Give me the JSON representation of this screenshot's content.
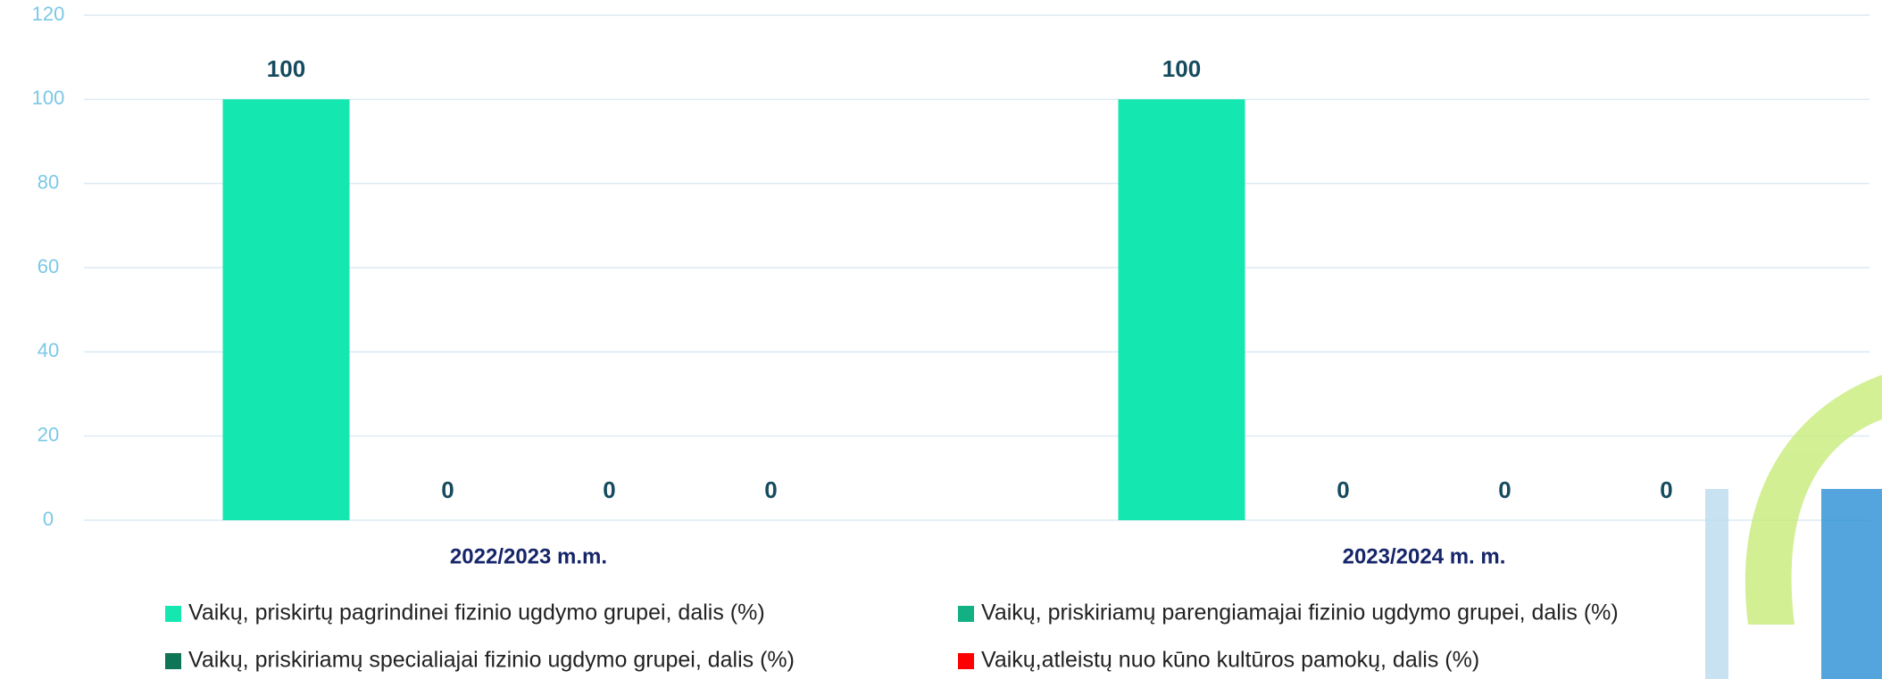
{
  "chart_data": {
    "type": "bar",
    "categories": [
      "2022/2023 m.m.",
      "2023/2024 m. m."
    ],
    "series": [
      {
        "name": "Vaikų,  priskirtų pagrindinei fizinio ugdymo grupei, dalis (%)",
        "color": "#14e8b0",
        "values": [
          100,
          100
        ]
      },
      {
        "name": "Vaikų, priskiriamų parengiamajai fizinio ugdymo grupei, dalis (%)",
        "color": "#12b083",
        "values": [
          0,
          0
        ]
      },
      {
        "name": "Vaikų, priskiriamų specialiajai fizinio ugdymo grupei, dalis (%)",
        "color": "#0e7556",
        "values": [
          0,
          0
        ]
      },
      {
        "name": "Vaikų,atleistų nuo kūno kultūros pamokų, dalis (%)",
        "color": "#ff0000",
        "values": [
          0,
          0
        ]
      }
    ],
    "ylim": [
      0,
      120
    ],
    "yticks": [
      0,
      20,
      40,
      60,
      80,
      100,
      120
    ],
    "grid": true
  }
}
